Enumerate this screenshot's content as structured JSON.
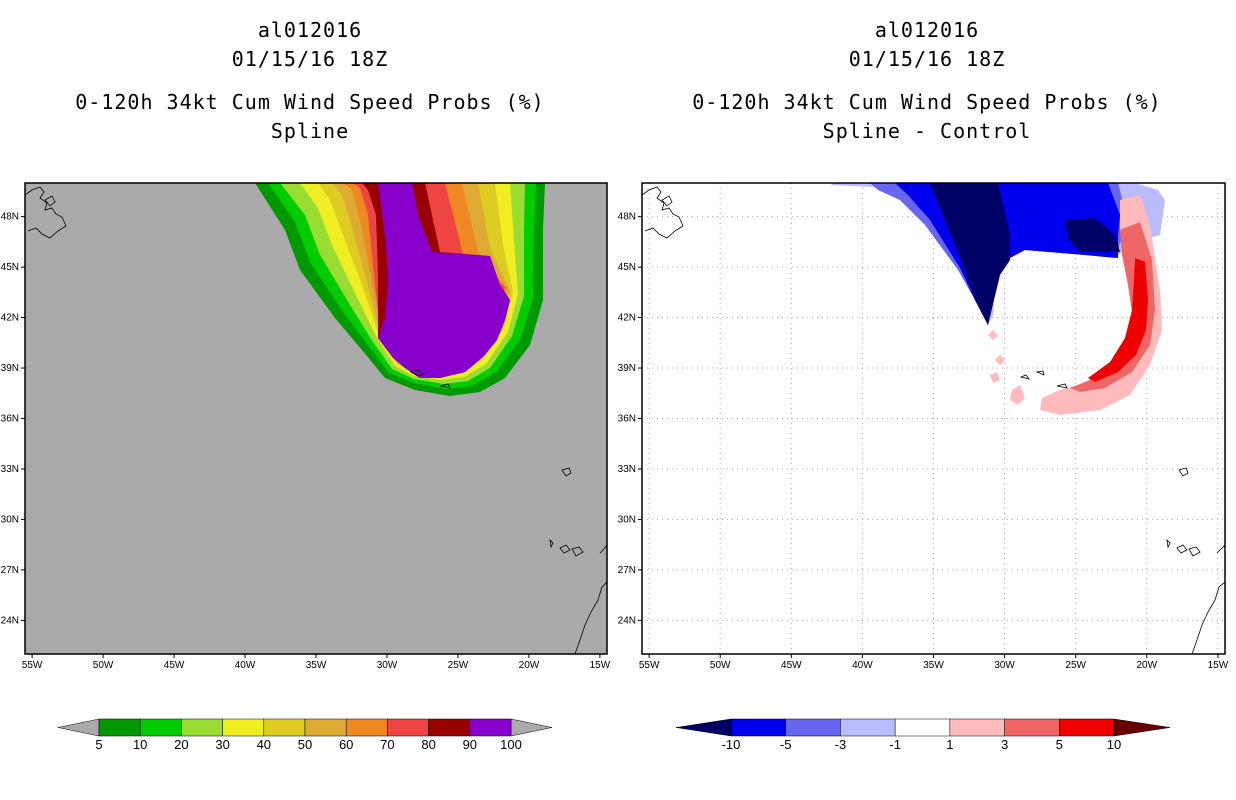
{
  "chart_data": [
    {
      "type": "heatmap",
      "title_lines": [
        "al012016",
        "01/15/16 18Z",
        "0-120h 34kt Cum Wind Speed Probs (%)",
        "Spline"
      ],
      "x_ticks": [
        "55W",
        "50W",
        "45W",
        "40W",
        "35W",
        "30W",
        "25W",
        "20W",
        "15W"
      ],
      "y_ticks": [
        "48N",
        "45N",
        "42N",
        "39N",
        "36N",
        "33N",
        "30N",
        "27N",
        "24N"
      ],
      "xlim": [
        -55.5,
        -14.5
      ],
      "ylim": [
        22,
        50
      ],
      "background_color": "#aaaaaa",
      "colorbar": {
        "labels": [
          "5",
          "10",
          "20",
          "30",
          "40",
          "50",
          "60",
          "70",
          "80",
          "90",
          "100"
        ],
        "colors": [
          "#009900",
          "#00cc00",
          "#99dd33",
          "#eeee22",
          "#ddcc22",
          "#ddaa33",
          "#ee8822",
          "#ee4444",
          "#990000",
          "#8800cc"
        ]
      }
    },
    {
      "type": "heatmap",
      "title_lines": [
        "al012016",
        "01/15/16 18Z",
        "0-120h 34kt Cum Wind Speed Probs (%)",
        "Spline - Control"
      ],
      "x_ticks": [
        "55W",
        "50W",
        "45W",
        "40W",
        "35W",
        "30W",
        "25W",
        "20W",
        "15W"
      ],
      "y_ticks": [
        "48N",
        "45N",
        "42N",
        "39N",
        "36N",
        "33N",
        "30N",
        "27N",
        "24N"
      ],
      "xlim": [
        -55.5,
        -14.5
      ],
      "ylim": [
        22,
        50
      ],
      "background_color": "#ffffff",
      "colorbar": {
        "labels": [
          "-10",
          "-5",
          "-3",
          "-1",
          "1",
          "3",
          "5",
          "10"
        ],
        "colors": [
          "#000066",
          "#0000ee",
          "#6666ee",
          "#bbbbff",
          "#ffffff",
          "#ffbbbb",
          "#ee6666",
          "#ee0000",
          "#660000"
        ]
      }
    }
  ]
}
